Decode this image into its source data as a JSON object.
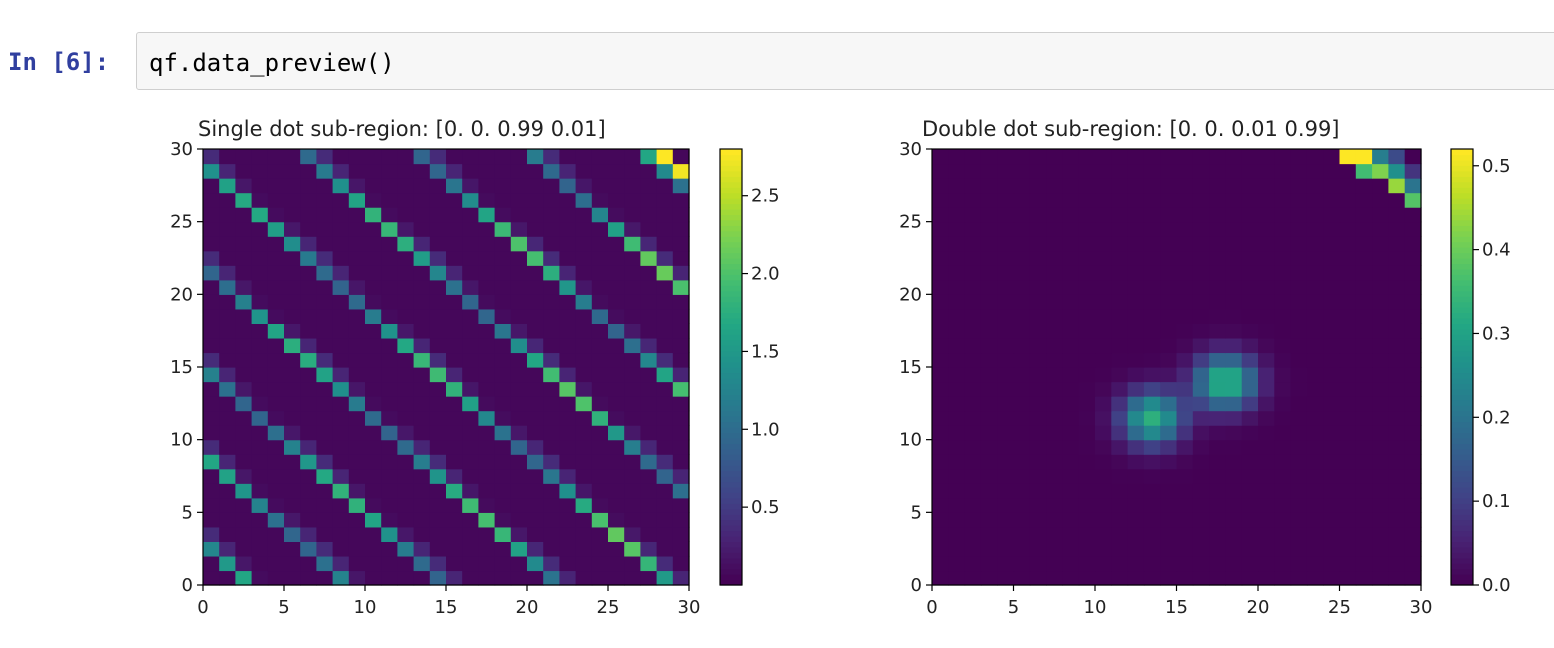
{
  "cell": {
    "prompt": "In [6]:",
    "code": "qf.data_preview()"
  },
  "chart_data": [
    {
      "type": "heatmap",
      "title": "Single dot sub-region: [0.   0.   0.99 0.01]",
      "xlabel": "",
      "ylabel": "",
      "xlim": [
        0,
        30
      ],
      "ylim": [
        0,
        30
      ],
      "grid_size": 30,
      "x_ticks": [
        "0",
        "5",
        "10",
        "15",
        "20",
        "25",
        "30"
      ],
      "y_ticks": [
        "0",
        "5",
        "10",
        "15",
        "20",
        "25",
        "30"
      ],
      "colormap": "viridis",
      "colorbar": {
        "min": 0.0,
        "max": 2.8,
        "ticks": [
          "0.5",
          "1.0",
          "1.5",
          "2.0",
          "2.5"
        ]
      },
      "pattern": {
        "kind": "diagonal_stripes",
        "stripe_offsets": [
          2,
          8,
          14,
          21,
          28,
          35,
          42,
          49,
          56
        ],
        "base_value": 0.05,
        "stripe_value_min": 0.9,
        "stripe_value_max": 2.2,
        "side_value": 0.35,
        "peak_cells": [
          {
            "col": 28,
            "row": 29,
            "value": 2.8
          },
          {
            "col": 29,
            "row": 28,
            "value": 2.75
          }
        ]
      }
    },
    {
      "type": "heatmap",
      "title": "Double dot sub-region: [0.   0.   0.01 0.99]",
      "xlabel": "",
      "ylabel": "",
      "xlim": [
        0,
        30
      ],
      "ylim": [
        0,
        30
      ],
      "grid_size": 30,
      "x_ticks": [
        "0",
        "5",
        "10",
        "15",
        "20",
        "25",
        "30"
      ],
      "y_ticks": [
        "0",
        "5",
        "10",
        "15",
        "20",
        "25",
        "30"
      ],
      "colormap": "viridis",
      "colorbar": {
        "min": 0.0,
        "max": 0.52,
        "ticks": [
          "0.0",
          "0.1",
          "0.2",
          "0.3",
          "0.4",
          "0.5"
        ]
      },
      "blobs": [
        {
          "cx": 13.5,
          "cy": 11.5,
          "peak": 0.33,
          "sigma": 1.3
        },
        {
          "cx": 18.0,
          "cy": 14.0,
          "peak": 0.35,
          "sigma": 1.3
        }
      ],
      "corner_cells": [
        {
          "col": 25,
          "row": 29,
          "value": 0.52
        },
        {
          "col": 26,
          "row": 29,
          "value": 0.52
        },
        {
          "col": 27,
          "row": 29,
          "value": 0.22
        },
        {
          "col": 28,
          "row": 29,
          "value": 0.12
        },
        {
          "col": 26,
          "row": 28,
          "value": 0.36
        },
        {
          "col": 27,
          "row": 28,
          "value": 0.42
        },
        {
          "col": 28,
          "row": 28,
          "value": 0.26
        },
        {
          "col": 29,
          "row": 28,
          "value": 0.08
        },
        {
          "col": 28,
          "row": 27,
          "value": 0.44
        },
        {
          "col": 29,
          "row": 27,
          "value": 0.2
        },
        {
          "col": 29,
          "row": 26,
          "value": 0.38
        }
      ]
    }
  ]
}
